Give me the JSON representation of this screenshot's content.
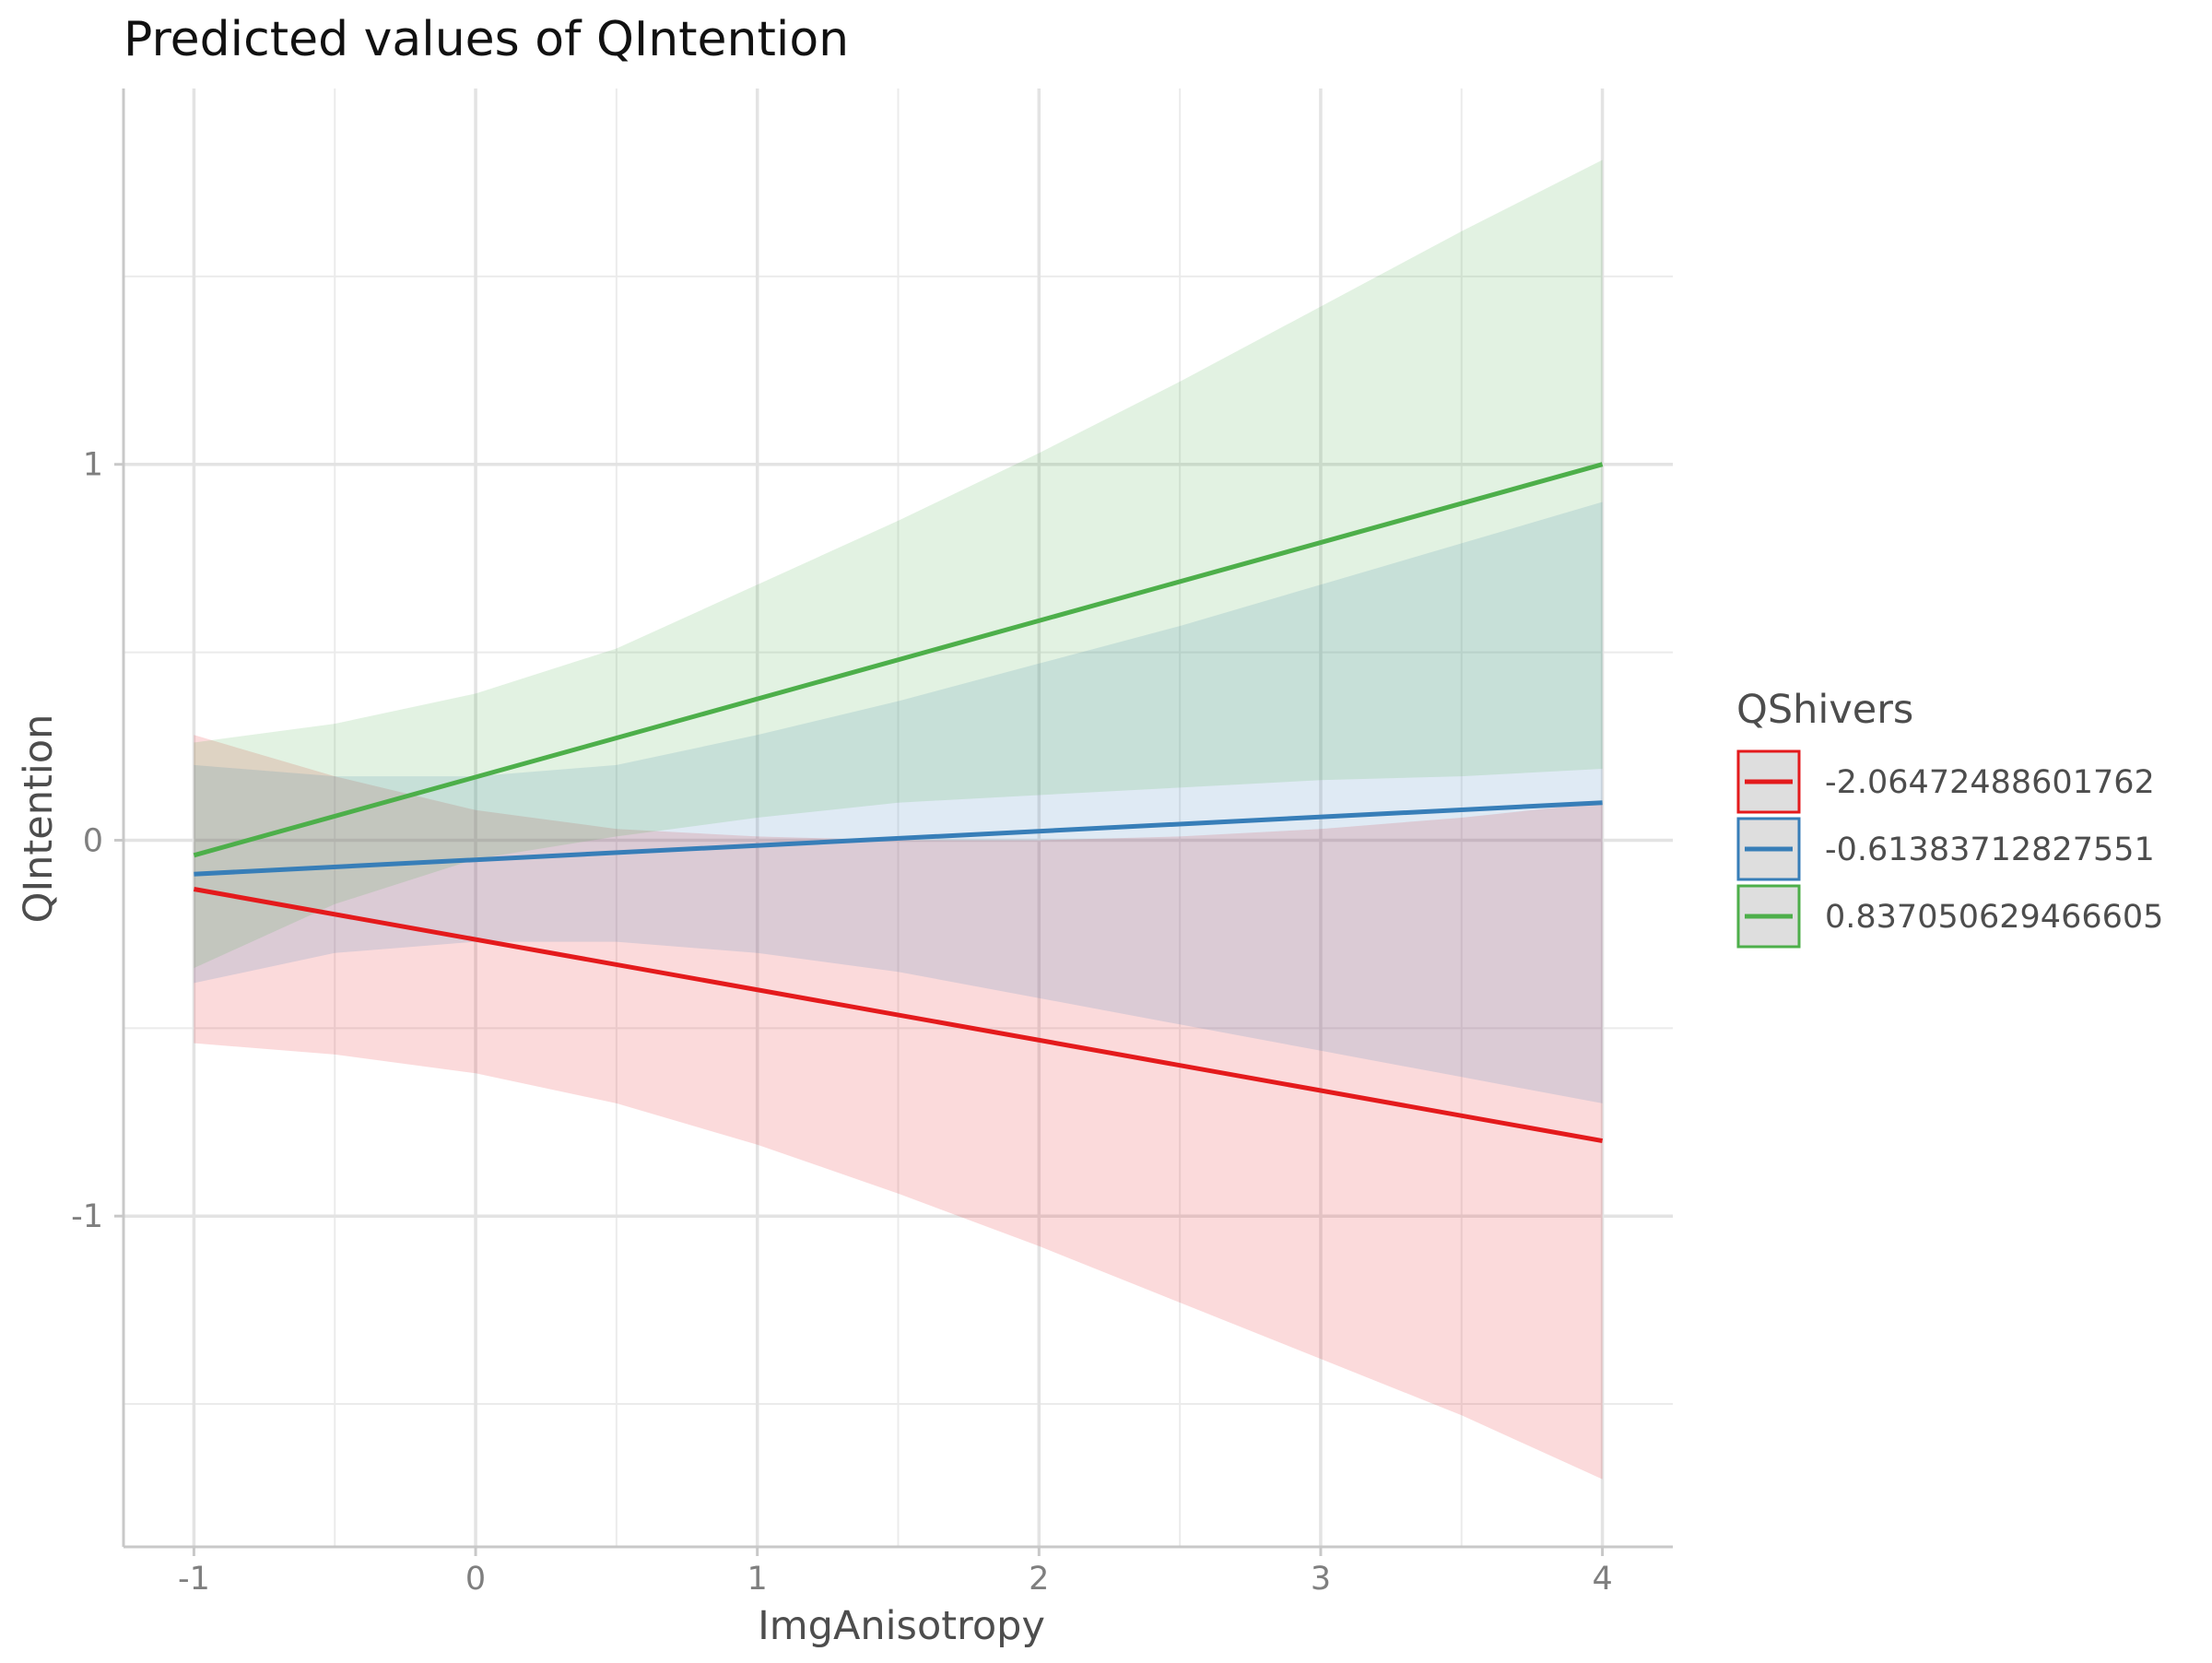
{
  "chart_data": {
    "type": "line",
    "title": "Predicted values of QIntention",
    "xlabel": "ImgAnisotropy",
    "ylabel": "QIntention",
    "xlim": [
      -1.25,
      4.25
    ],
    "ylim": [
      -1.88,
      2.0
    ],
    "x_ticks": [
      -1,
      0,
      1,
      2,
      3,
      4
    ],
    "x_minor_ticks": [
      -0.5,
      0.5,
      1.5,
      2.5,
      3.5
    ],
    "y_ticks": [
      -1,
      0,
      1
    ],
    "y_minor_ticks": [
      -1.5,
      -0.5,
      0.5,
      1.5
    ],
    "grid": true,
    "legend": {
      "title": "QShivers",
      "placement": "right"
    },
    "series": [
      {
        "name": "-2.06472488601762",
        "color": "#e41a1c",
        "x": [
          -1,
          4
        ],
        "y": [
          -0.13,
          -0.8
        ],
        "ci": {
          "x": [
            -1,
            -0.5,
            0,
            0.5,
            1,
            1.5,
            2,
            2.5,
            3,
            3.5,
            4
          ],
          "lower": [
            -0.54,
            -0.57,
            -0.62,
            -0.7,
            -0.81,
            -0.94,
            -1.08,
            -1.23,
            -1.38,
            -1.53,
            -1.7
          ],
          "upper": [
            0.28,
            0.17,
            0.08,
            0.03,
            0.01,
            0.0,
            0.0,
            0.01,
            0.03,
            0.06,
            0.1
          ]
        }
      },
      {
        "name": "-0.61383712827551",
        "color": "#377eb8",
        "x": [
          -1,
          4
        ],
        "y": [
          -0.09,
          0.1
        ],
        "ci": {
          "x": [
            -1,
            -0.5,
            0,
            0.5,
            1,
            1.5,
            2,
            2.5,
            3,
            3.5,
            4
          ],
          "lower": [
            -0.38,
            -0.3,
            -0.27,
            -0.27,
            -0.3,
            -0.35,
            -0.42,
            -0.49,
            -0.56,
            -0.63,
            -0.7
          ],
          "upper": [
            0.2,
            0.17,
            0.17,
            0.2,
            0.28,
            0.37,
            0.47,
            0.57,
            0.68,
            0.79,
            0.9
          ]
        }
      },
      {
        "name": "0.837050629466605",
        "color": "#4daf4a",
        "x": [
          -1,
          4
        ],
        "y": [
          -0.04,
          1.0
        ],
        "ci": {
          "x": [
            -1,
            -0.5,
            0,
            0.5,
            1,
            1.5,
            2,
            2.5,
            3,
            3.5,
            4
          ],
          "lower": [
            -0.34,
            -0.17,
            -0.05,
            0.01,
            0.06,
            0.1,
            0.12,
            0.14,
            0.16,
            0.17,
            0.19
          ],
          "upper": [
            0.26,
            0.31,
            0.39,
            0.51,
            0.68,
            0.85,
            1.03,
            1.22,
            1.42,
            1.62,
            1.81
          ]
        }
      }
    ]
  }
}
